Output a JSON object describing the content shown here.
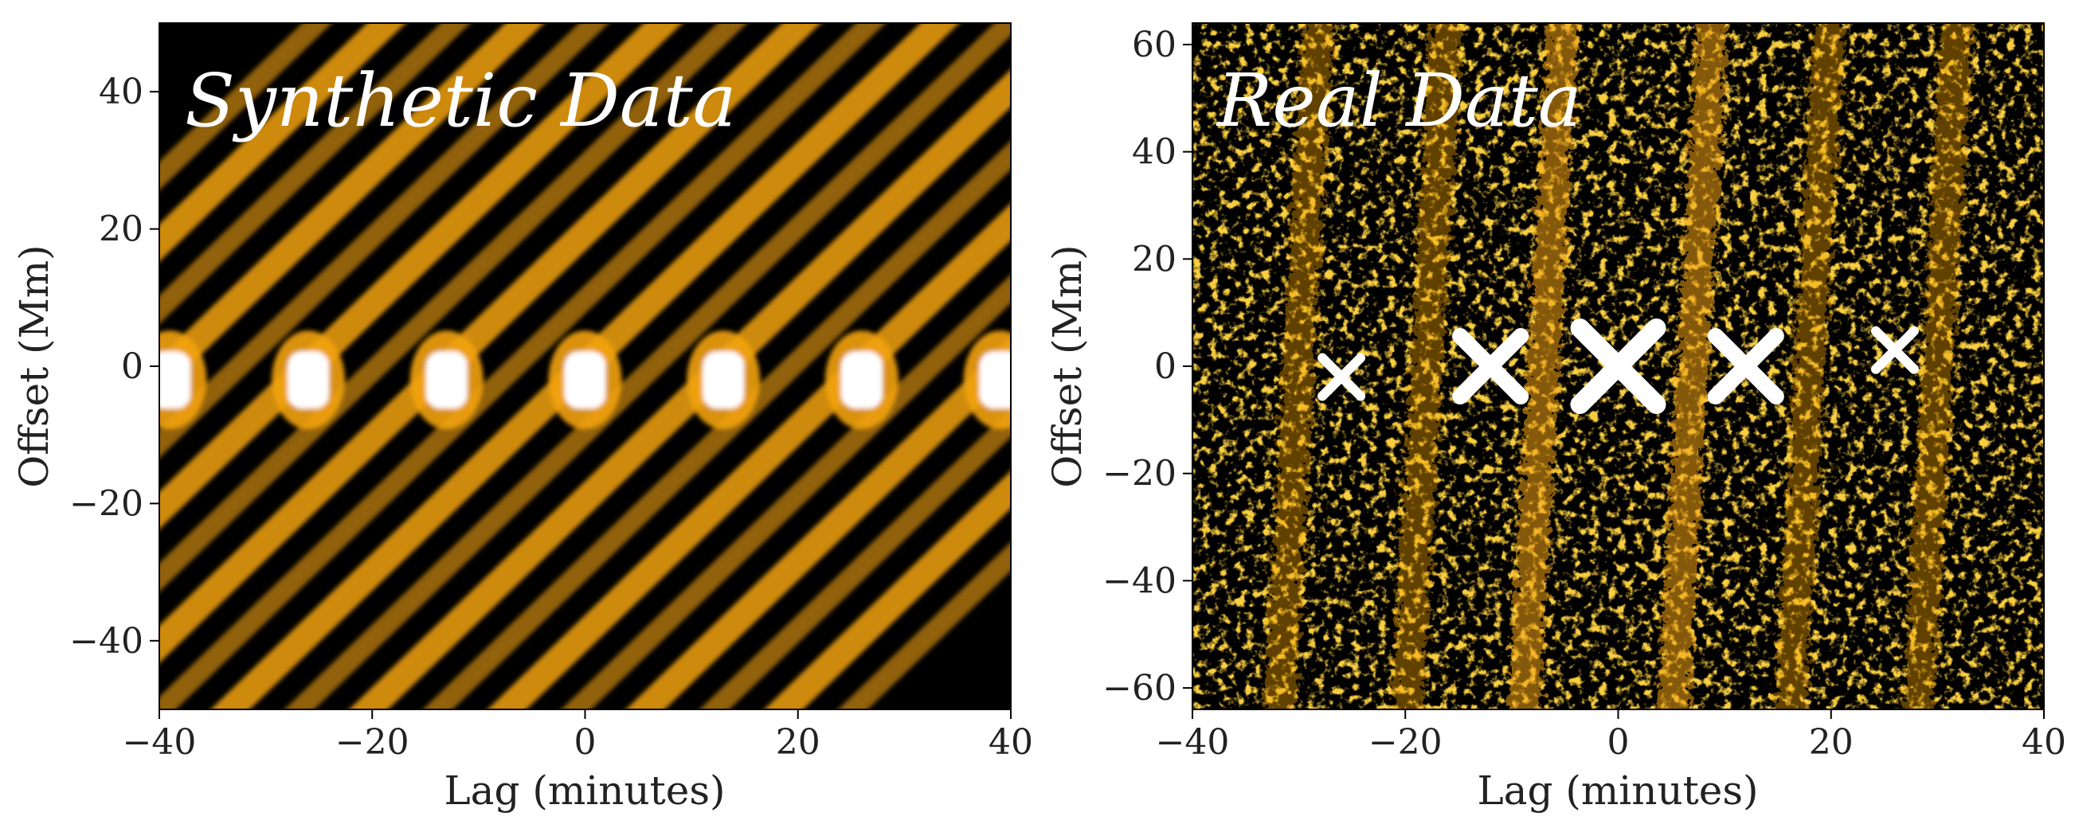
{
  "colors": {
    "background": "#000000",
    "accent": "#f2a20c",
    "peak": "#ffffff",
    "axis": "#000000",
    "text": "#222222"
  },
  "chart_data": [
    {
      "type": "heatmap",
      "title": "Synthetic Data",
      "xlabel": "Lag (minutes)",
      "ylabel": "Offset (Mm)",
      "xlim": [
        -40,
        40
      ],
      "ylim": [
        -50,
        50
      ],
      "xticks": [
        -40,
        -20,
        0,
        20,
        40
      ],
      "yticks": [
        -40,
        -20,
        0,
        20,
        40
      ],
      "xtick_labels": [
        "−40",
        "−20",
        "0",
        "20",
        "40"
      ],
      "ytick_labels": [
        "−40",
        "−20",
        "0",
        "20",
        "40"
      ],
      "grid": false,
      "colormap": "black-orange-white",
      "z": "cross-correlation amplitude (not printed)",
      "peaks": [
        {
          "x": -39,
          "y": -2
        },
        {
          "x": -26,
          "y": -2
        },
        {
          "x": -13,
          "y": -2
        },
        {
          "x": 0,
          "y": -2
        },
        {
          "x": 13,
          "y": -2
        },
        {
          "x": 26,
          "y": -2
        },
        {
          "x": 39,
          "y": -2
        }
      ],
      "ridge_period_minutes": 13,
      "ridge_slope_Mm_per_minute": 1.5
    },
    {
      "type": "heatmap",
      "title": "Real Data",
      "xlabel": "Lag (minutes)",
      "ylabel": "Offset (Mm)",
      "xlim": [
        -40,
        40
      ],
      "ylim": [
        -64,
        64
      ],
      "xticks": [
        -40,
        -20,
        0,
        20,
        40
      ],
      "yticks": [
        -60,
        -40,
        -20,
        0,
        20,
        40,
        60
      ],
      "xtick_labels": [
        "−40",
        "−20",
        "0",
        "20",
        "40"
      ],
      "ytick_labels": [
        "−60",
        "−40",
        "−20",
        "0",
        "20",
        "40",
        "60"
      ],
      "grid": false,
      "colormap": "black-orange-white",
      "z": "cross-correlation amplitude (not printed)",
      "peaks": [
        {
          "x": -26,
          "y": -2
        },
        {
          "x": -12,
          "y": 0
        },
        {
          "x": 0,
          "y": 0
        },
        {
          "x": 12,
          "y": 0
        },
        {
          "x": 26,
          "y": 3
        }
      ],
      "x_shaped_peaks": true
    }
  ]
}
